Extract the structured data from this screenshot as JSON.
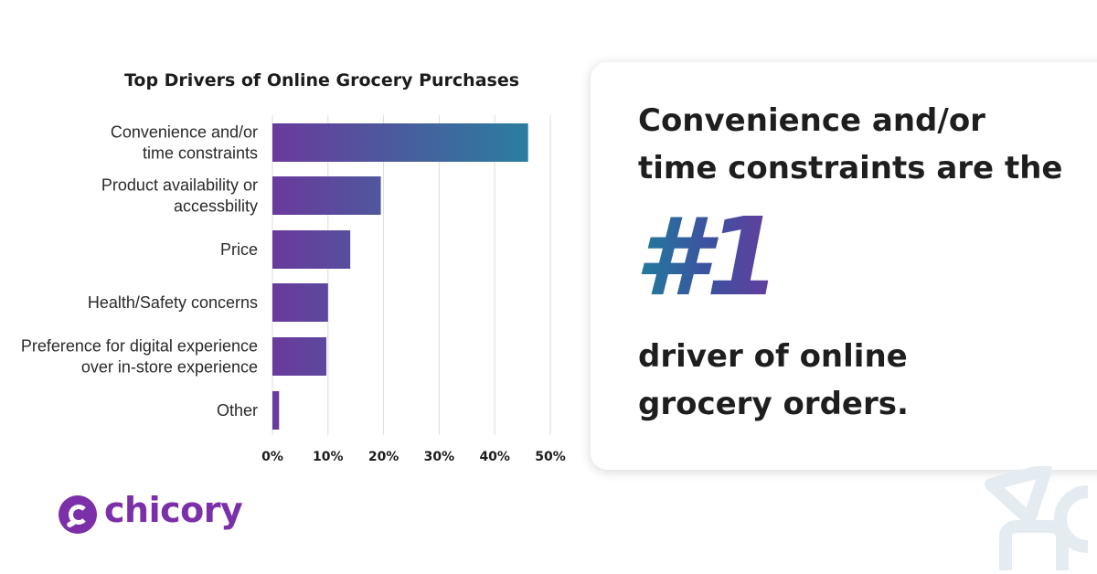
{
  "chart_data": {
    "type": "bar",
    "orientation": "horizontal",
    "title": "Top Drivers of Online Grocery Purchases",
    "categories": [
      [
        "Convenience and/or",
        "time constraints"
      ],
      [
        "Product availability or",
        "accessbility"
      ],
      [
        "Price"
      ],
      [
        "Health/Safety concerns"
      ],
      [
        "Preference for digital experience",
        "over in-store experience"
      ],
      [
        "Other"
      ]
    ],
    "values": [
      46,
      19.5,
      14,
      10,
      9.7,
      1.2
    ],
    "xlim": [
      0,
      50
    ],
    "ticks": [
      0,
      10,
      20,
      30,
      40,
      50
    ],
    "tick_labels": [
      "0%",
      "10%",
      "20%",
      "30%",
      "40%",
      "50%"
    ],
    "xlabel": "",
    "ylabel": "",
    "grid": "vertical",
    "bar_gradient": [
      "#6a3a9c",
      "#2a7ea0"
    ]
  },
  "callout": {
    "lead_line1": "Convenience and/or",
    "lead_line2": "time constraints are the",
    "rank": "#1",
    "tail_line1": "driver of online",
    "tail_line2": "grocery orders."
  },
  "brand": {
    "name": "chicory",
    "color": "#7b2fa8"
  }
}
